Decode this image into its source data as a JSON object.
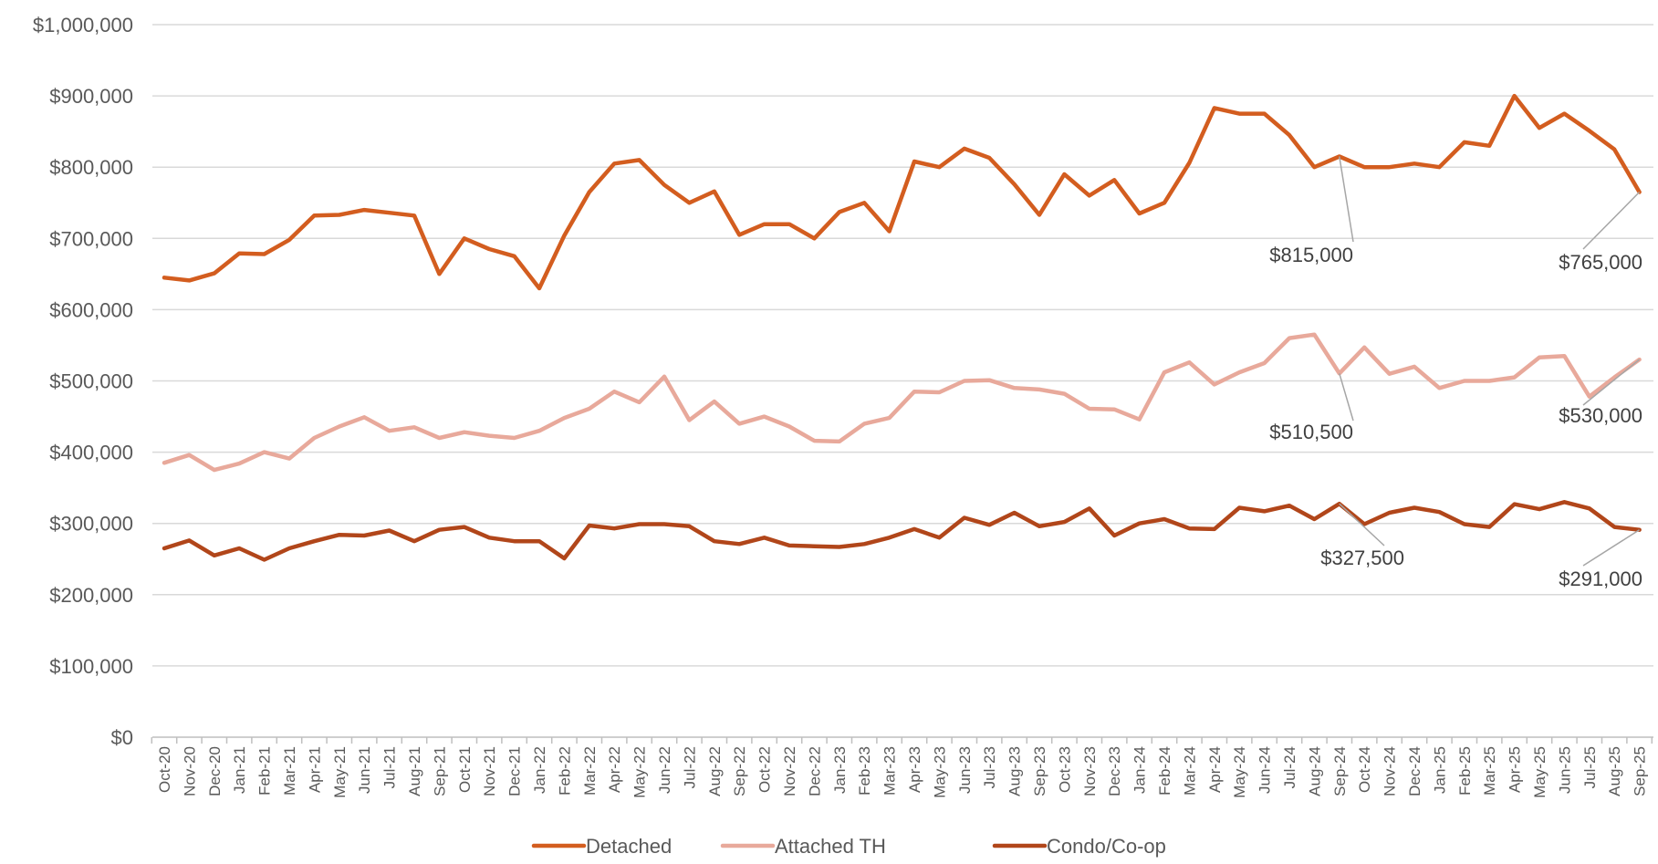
{
  "chart_data": {
    "type": "line",
    "title": "",
    "xlabel": "",
    "ylabel": "",
    "ylim": [
      0,
      1000000
    ],
    "y_ticks": [
      0,
      100000,
      200000,
      300000,
      400000,
      500000,
      600000,
      700000,
      800000,
      900000,
      1000000
    ],
    "y_tick_labels": [
      "$0",
      "$100,000",
      "$200,000",
      "$300,000",
      "$400,000",
      "$500,000",
      "$600,000",
      "$700,000",
      "$800,000",
      "$900,000",
      "$1,000,000"
    ],
    "grid": true,
    "legend_position": "bottom",
    "categories": [
      "Oct-20",
      "Nov-20",
      "Dec-20",
      "Jan-21",
      "Feb-21",
      "Mar-21",
      "Apr-21",
      "May-21",
      "Jun-21",
      "Jul-21",
      "Aug-21",
      "Sep-21",
      "Oct-21",
      "Nov-21",
      "Dec-21",
      "Jan-22",
      "Feb-22",
      "Mar-22",
      "Apr-22",
      "May-22",
      "Jun-22",
      "Jul-22",
      "Aug-22",
      "Sep-22",
      "Oct-22",
      "Nov-22",
      "Dec-22",
      "Jan-23",
      "Feb-23",
      "Mar-23",
      "Apr-23",
      "May-23",
      "Jun-23",
      "Jul-23",
      "Aug-23",
      "Sep-23",
      "Oct-23",
      "Nov-23",
      "Dec-23",
      "Jan-24",
      "Feb-24",
      "Mar-24",
      "Apr-24",
      "May-24",
      "Jun-24",
      "Jul-24",
      "Aug-24",
      "Sep-24",
      "Oct-24",
      "Nov-24",
      "Dec-24",
      "Jan-25",
      "Feb-25",
      "Mar-25",
      "Apr-25",
      "May-25",
      "Jun-25",
      "Jul-25",
      "Aug-25",
      "Sep-25"
    ],
    "series": [
      {
        "name": "Detached",
        "color": "#D35D1F",
        "values": [
          645000,
          641000,
          651000,
          679000,
          678000,
          698000,
          732000,
          733000,
          740000,
          736000,
          732000,
          650000,
          700000,
          685000,
          675000,
          630000,
          704000,
          765000,
          805000,
          810000,
          775000,
          750000,
          766000,
          705000,
          720000,
          720000,
          700000,
          737000,
          750000,
          710000,
          808000,
          800000,
          826000,
          813000,
          776000,
          733000,
          790000,
          760000,
          782000,
          735000,
          750000,
          806000,
          883000,
          875000,
          875000,
          845000,
          800000,
          815000,
          800000,
          800000,
          805000,
          800000,
          835000,
          830000,
          900000,
          855000,
          875000,
          851000,
          825000,
          765000
        ]
      },
      {
        "name": "Attached TH",
        "color": "#E8A99B",
        "values": [
          385000,
          396000,
          375000,
          384000,
          400000,
          391000,
          420000,
          436000,
          449000,
          430000,
          435000,
          420000,
          428000,
          423000,
          420000,
          430000,
          448000,
          461000,
          485000,
          470000,
          506000,
          445000,
          471000,
          440000,
          450000,
          436000,
          416000,
          415000,
          440000,
          448000,
          485000,
          484000,
          500000,
          501000,
          490000,
          488000,
          482000,
          461000,
          460000,
          446000,
          512000,
          526000,
          495000,
          512000,
          525000,
          560000,
          565000,
          510500,
          547000,
          510000,
          520000,
          490000,
          500000,
          500000,
          505000,
          533000,
          535000,
          478000,
          505000,
          530000
        ]
      },
      {
        "name": "Condo/Co-op",
        "color": "#B1461A",
        "values": [
          265000,
          276000,
          255000,
          265000,
          249000,
          265000,
          275000,
          284000,
          283000,
          290000,
          275000,
          291000,
          295000,
          280000,
          275000,
          275000,
          251000,
          297000,
          293000,
          299000,
          299000,
          296000,
          275000,
          271000,
          280000,
          269000,
          268000,
          267000,
          271000,
          280000,
          292000,
          280000,
          308000,
          298000,
          315000,
          296000,
          302000,
          321000,
          283000,
          300000,
          306000,
          293000,
          292000,
          322000,
          317000,
          325000,
          306000,
          327500,
          299000,
          315000,
          322000,
          316000,
          299000,
          295000,
          327000,
          320000,
          330000,
          321000,
          295000,
          291000
        ]
      }
    ],
    "annotations": [
      {
        "series": "Detached",
        "category": "Sep-24",
        "value": 815000,
        "label": "$815,000"
      },
      {
        "series": "Detached",
        "category": "Sep-25",
        "value": 765000,
        "label": "$765,000"
      },
      {
        "series": "Attached TH",
        "category": "Sep-24",
        "value": 510500,
        "label": "$510,500"
      },
      {
        "series": "Attached TH",
        "category": "Sep-25",
        "value": 530000,
        "label": "$530,000"
      },
      {
        "series": "Condo/Co-op",
        "category": "Sep-24",
        "value": 327500,
        "label": "$327,500"
      },
      {
        "series": "Condo/Co-op",
        "category": "Sep-25",
        "value": 291000,
        "label": "$291,000"
      }
    ]
  }
}
